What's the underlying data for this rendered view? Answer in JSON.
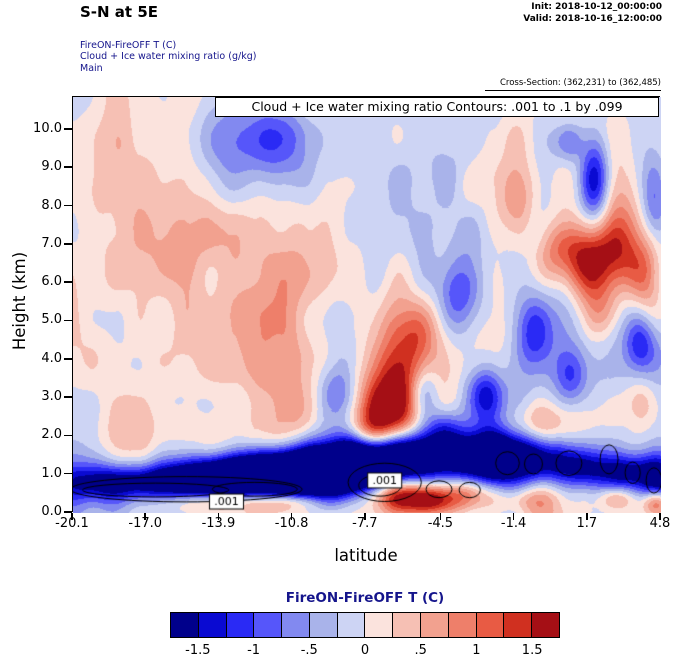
{
  "header": {
    "title": "S-N at 5E",
    "init_line": "Init: 2018-10-12_00:00:00",
    "valid_line": "Valid: 2018-10-16_12:00:00",
    "field_line1": "FireON-FireOFF T  (C)",
    "field_line2": "Cloud + Ice water mixing ratio  (g/kg)",
    "field_line3": "Main",
    "cross_section": "Cross-Section: (362,231) to (362,485)"
  },
  "chart_data": {
    "type": "heatmap",
    "title_banner": "Cloud + Ice water mixing ratio Contours: .001 to .1 by .099",
    "xlabel": "latitude",
    "ylabel": "Height (km)",
    "x_range": [
      -20.1,
      4.8
    ],
    "y_range": [
      0.0,
      10.86
    ],
    "x_ticks": [
      "-20.1",
      "-17.0",
      "-13.9",
      "-10.8",
      "-7.7",
      "-4.5",
      "-1.4",
      "1.7",
      "4.8"
    ],
    "y_ticks": [
      "0.0",
      "1.0",
      "2.0",
      "3.0",
      "4.0",
      "5.0",
      "6.0",
      "7.0",
      "8.0",
      "9.0",
      "10.0"
    ],
    "fill_field": "FireON-FireOFF temperature difference (C)",
    "fill_levels": [
      -1.5,
      -1.25,
      -1.0,
      -0.75,
      -0.5,
      -0.25,
      0.0,
      0.25,
      0.5,
      0.75,
      1.0,
      1.25,
      1.5
    ],
    "fill_colors": [
      "#00008b",
      "#0a0ad2",
      "#2a2af5",
      "#5656fa",
      "#8289f0",
      "#a9b3ea",
      "#cdd4f4",
      "#fbe3dd",
      "#f6c0b4",
      "#f2a18f",
      "#ee7f6a",
      "#e85b44",
      "#d03020",
      "#a50f15"
    ],
    "noise": {
      "seed": 7,
      "octave1": {
        "fx": 0.45,
        "fy": 0.42,
        "amp": 0.42
      },
      "octave2": {
        "fx": 1.0,
        "fy": 0.85,
        "amp": 0.24
      },
      "bias": 0.03
    },
    "features_format": [
      "lat",
      "height_km",
      "sigma_lat",
      "sigma_km",
      "amplitude_C"
    ],
    "features": [
      [
        -19.0,
        0.8,
        1.6,
        0.35,
        -1.0
      ],
      [
        -16.5,
        0.8,
        1.8,
        0.3,
        -1.1
      ],
      [
        -14.5,
        0.9,
        1.6,
        0.35,
        -1.5
      ],
      [
        -12.5,
        1.0,
        1.6,
        0.4,
        -2.3
      ],
      [
        -10.5,
        1.05,
        1.5,
        0.45,
        -2.5
      ],
      [
        -8.7,
        1.2,
        1.3,
        0.5,
        -2.5
      ],
      [
        -7.2,
        1.45,
        1.0,
        0.5,
        -2.2
      ],
      [
        -5.8,
        1.5,
        0.9,
        0.45,
        -1.7
      ],
      [
        -4.3,
        1.45,
        1.0,
        0.4,
        -1.3
      ],
      [
        -2.7,
        1.5,
        1.1,
        0.5,
        -1.9
      ],
      [
        -1.2,
        1.45,
        1.0,
        0.45,
        -1.7
      ],
      [
        0.3,
        1.3,
        0.9,
        0.4,
        -1.0
      ],
      [
        1.6,
        1.15,
        0.8,
        0.35,
        -1.0
      ],
      [
        3.3,
        1.05,
        0.8,
        0.35,
        -1.5
      ],
      [
        4.7,
        0.85,
        0.6,
        0.5,
        -1.9
      ],
      [
        -13.8,
        0.3,
        1.6,
        0.18,
        0.8
      ],
      [
        -10.9,
        0.3,
        0.9,
        0.15,
        0.6
      ],
      [
        -6.4,
        0.45,
        0.9,
        0.3,
        1.6
      ],
      [
        -4.9,
        0.35,
        0.7,
        0.25,
        1.3
      ],
      [
        -3.4,
        0.5,
        0.7,
        0.3,
        1.1
      ],
      [
        -1.0,
        0.35,
        0.9,
        0.25,
        0.6
      ],
      [
        2.9,
        0.4,
        0.5,
        0.2,
        0.7
      ],
      [
        4.6,
        0.3,
        0.4,
        0.25,
        1.6
      ],
      [
        -6.9,
        2.6,
        1.0,
        0.8,
        1.2
      ],
      [
        -6.2,
        3.7,
        0.85,
        0.9,
        0.9
      ],
      [
        -7.6,
        2.1,
        0.7,
        0.4,
        0.9
      ],
      [
        -5.4,
        4.6,
        0.6,
        0.6,
        0.5
      ],
      [
        1.8,
        6.6,
        0.9,
        0.7,
        1.5
      ],
      [
        3.1,
        7.2,
        0.75,
        0.8,
        1.2
      ],
      [
        0.4,
        6.9,
        0.7,
        0.6,
        0.8
      ],
      [
        2.3,
        5.2,
        0.6,
        0.55,
        0.9
      ],
      [
        4.2,
        6.1,
        0.5,
        0.8,
        0.9
      ],
      [
        -1.3,
        8.3,
        0.6,
        0.6,
        0.7
      ],
      [
        -0.2,
        2.3,
        1.3,
        0.4,
        0.7
      ],
      [
        3.9,
        2.9,
        0.5,
        0.5,
        0.6
      ],
      [
        2.0,
        8.8,
        0.45,
        0.9,
        -1.6
      ],
      [
        0.9,
        9.7,
        0.5,
        0.4,
        -0.9
      ],
      [
        -3.8,
        5.6,
        0.7,
        0.8,
        -1.1
      ],
      [
        -2.7,
        3.1,
        0.55,
        0.5,
        -1.2
      ],
      [
        -5.3,
        3.1,
        0.45,
        0.5,
        -1.0
      ],
      [
        -0.6,
        4.7,
        0.55,
        0.65,
        -0.9
      ],
      [
        3.9,
        4.4,
        0.45,
        0.55,
        -0.9
      ],
      [
        -4.4,
        2.2,
        0.55,
        0.35,
        -1.0
      ],
      [
        -9.0,
        3.2,
        0.5,
        0.5,
        -0.6
      ],
      [
        1.0,
        3.6,
        0.5,
        0.5,
        -0.7
      ],
      [
        4.5,
        8.3,
        0.4,
        0.8,
        -0.9
      ],
      [
        -11.5,
        9.8,
        0.8,
        0.6,
        -0.6
      ],
      [
        -15.0,
        4.5,
        3.2,
        1.8,
        0.35
      ],
      [
        -18.5,
        8.7,
        2.0,
        1.6,
        0.3
      ],
      [
        -16.0,
        2.0,
        2.8,
        0.6,
        0.4
      ],
      [
        -10.5,
        6.2,
        2.2,
        2.2,
        0.25
      ],
      [
        -19.5,
        0.9,
        1.0,
        0.8,
        -0.4
      ],
      [
        -13.0,
        9.8,
        2.5,
        1.2,
        -0.3
      ],
      [
        -6.5,
        8.0,
        2.0,
        2.0,
        -0.2
      ],
      [
        -2.0,
        6.0,
        1.5,
        2.0,
        -0.25
      ]
    ],
    "contours": {
      "label": ".001",
      "levels_text": ".001 to .1 by .099",
      "shapes_format": [
        "lat",
        "height_km",
        "rx_lat",
        "ry_km"
      ],
      "shapes": [
        [
          -15.3,
          0.62,
          4.9,
          0.33
        ],
        [
          -16.6,
          0.6,
          3.1,
          0.18
        ],
        [
          -12.4,
          0.62,
          1.8,
          0.18
        ],
        [
          -6.9,
          0.8,
          1.55,
          0.5
        ],
        [
          -7.1,
          0.72,
          0.9,
          0.28
        ],
        [
          -4.6,
          0.62,
          0.55,
          0.22
        ],
        [
          -3.3,
          0.6,
          0.45,
          0.2
        ],
        [
          -1.7,
          1.3,
          0.5,
          0.3
        ],
        [
          -0.6,
          1.28,
          0.38,
          0.26
        ],
        [
          0.9,
          1.3,
          0.55,
          0.32
        ],
        [
          2.6,
          1.4,
          0.38,
          0.38
        ],
        [
          3.6,
          1.05,
          0.32,
          0.28
        ],
        [
          4.5,
          0.85,
          0.33,
          0.33
        ]
      ],
      "label_positions": [
        [
          -13.6,
          0.3
        ],
        [
          -6.9,
          0.85
        ]
      ]
    },
    "colorbar": {
      "title": "FireON-FireOFF T  (C)",
      "labels": [
        "-1.5",
        "-1",
        "-.5",
        "0",
        ".5",
        "1",
        "1.5"
      ]
    }
  }
}
